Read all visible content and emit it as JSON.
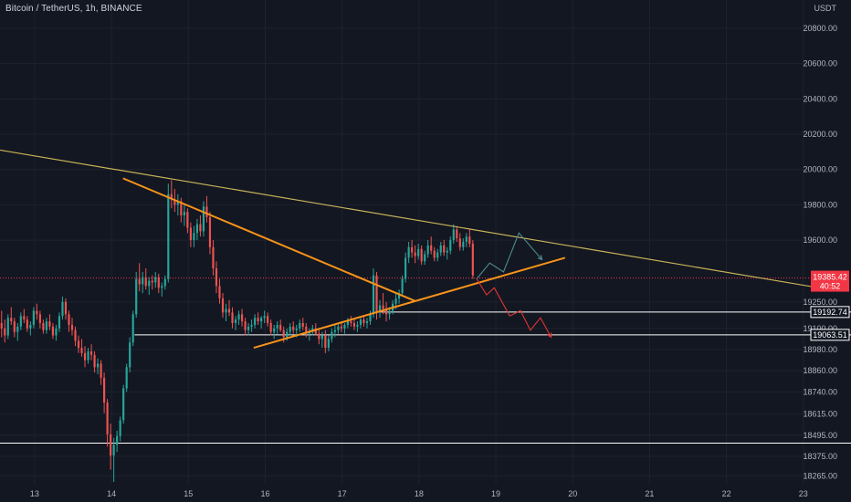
{
  "header": {
    "title": "Bitcoin / TetherUS, 1h, BINANCE",
    "currency": "USDT"
  },
  "colors": {
    "background": "#131722",
    "grid": "#1e222d",
    "axis_text": "#b2b5be",
    "up_candle": "#26a69a",
    "down_candle": "#ef5350",
    "trendline_orange": "#f7931a",
    "trendline_yellow": "#c9b458",
    "level_line": "#ffffff",
    "projection_up": "#4d8e8e",
    "projection_down": "#e0342f",
    "current_price_tag": "#f23645"
  },
  "chart_data": {
    "type": "candlestick",
    "x_ticks": [
      "13",
      "14",
      "15",
      "16",
      "17",
      "18",
      "19",
      "20",
      "21",
      "22",
      "23"
    ],
    "y_ticks": [
      "20800.00",
      "20600.00",
      "20400.00",
      "20200.00",
      "20000.00",
      "19800.00",
      "19600.00",
      "19250.00",
      "19100.00",
      "18980.00",
      "18860.00",
      "18740.00",
      "18615.00",
      "18495.00",
      "18375.00",
      "18265.00"
    ],
    "xlim": [
      12.55,
      23.05
    ],
    "ylim": [
      18220,
      20960
    ],
    "current_price": {
      "value": "19385.42",
      "countdown": "40:52"
    },
    "levels": [
      {
        "value": 19192.74,
        "label": "19192.74",
        "x_start": 17.45,
        "x_end": 23.2,
        "tagged": true
      },
      {
        "value": 19063.51,
        "label": "19063.51",
        "x_start": 14.3,
        "x_end": 23.2,
        "tagged": true
      },
      {
        "value": 18450,
        "label": "",
        "x_start": 12.55,
        "x_end": 23.2,
        "tagged": false
      }
    ],
    "trendlines": [
      {
        "name": "",
        "color": "yellow",
        "points": [
          [
            12.55,
            20110
          ],
          [
            23.2,
            19330
          ]
        ]
      },
      {
        "name": "",
        "color": "orange",
        "points": [
          [
            14.15,
            19950
          ],
          [
            17.95,
            19255
          ]
        ]
      },
      {
        "name": "",
        "color": "orange",
        "points": [
          [
            15.85,
            18990
          ],
          [
            19.9,
            19500
          ]
        ]
      }
    ],
    "projections": [
      {
        "name": "",
        "direction": "up",
        "points": [
          [
            18.75,
            19380
          ],
          [
            18.92,
            19470
          ],
          [
            19.1,
            19420
          ],
          [
            19.3,
            19640
          ],
          [
            19.6,
            19490
          ]
        ]
      },
      {
        "name": "",
        "direction": "down",
        "points": [
          [
            18.75,
            19380
          ],
          [
            18.88,
            19290
          ],
          [
            18.98,
            19330
          ],
          [
            19.18,
            19170
          ],
          [
            19.32,
            19200
          ],
          [
            19.45,
            19090
          ],
          [
            19.58,
            19160
          ],
          [
            19.72,
            19050
          ]
        ]
      }
    ],
    "candles": {
      "start_x": 12.55,
      "step": 0.0417,
      "ohlc": [
        [
          19130,
          19200,
          19050,
          19100
        ],
        [
          19100,
          19150,
          19020,
          19060
        ],
        [
          19060,
          19180,
          19040,
          19160
        ],
        [
          19160,
          19220,
          19120,
          19140
        ],
        [
          19140,
          19160,
          19050,
          19080
        ],
        [
          19080,
          19130,
          19030,
          19110
        ],
        [
          19110,
          19190,
          19090,
          19170
        ],
        [
          19170,
          19210,
          19130,
          19150
        ],
        [
          19150,
          19170,
          19080,
          19100
        ],
        [
          19100,
          19140,
          19060,
          19120
        ],
        [
          19120,
          19220,
          19100,
          19200
        ],
        [
          19200,
          19240,
          19150,
          19180
        ],
        [
          19180,
          19200,
          19100,
          19130
        ],
        [
          19130,
          19150,
          19070,
          19090
        ],
        [
          19090,
          19160,
          19070,
          19140
        ],
        [
          19140,
          19180,
          19090,
          19110
        ],
        [
          19110,
          19130,
          19040,
          19060
        ],
        [
          19060,
          19120,
          19030,
          19100
        ],
        [
          19100,
          19190,
          19080,
          19170
        ],
        [
          19170,
          19280,
          19150,
          19250
        ],
        [
          19250,
          19270,
          19150,
          19180
        ],
        [
          19180,
          19200,
          19080,
          19120
        ],
        [
          19120,
          19160,
          19060,
          19090
        ],
        [
          19090,
          19110,
          19000,
          19030
        ],
        [
          19030,
          19060,
          18960,
          18990
        ],
        [
          18990,
          19040,
          18940,
          18960
        ],
        [
          18960,
          19000,
          18880,
          18920
        ],
        [
          18920,
          18990,
          18900,
          18970
        ],
        [
          18970,
          19010,
          18920,
          18950
        ],
        [
          18950,
          18970,
          18850,
          18880
        ],
        [
          18880,
          18930,
          18840,
          18900
        ],
        [
          18900,
          18920,
          18780,
          18820
        ],
        [
          18820,
          18850,
          18620,
          18680
        ],
        [
          18680,
          18700,
          18430,
          18500
        ],
        [
          18500,
          18560,
          18300,
          18380
        ],
        [
          18380,
          18480,
          18230,
          18440
        ],
        [
          18440,
          18520,
          18400,
          18490
        ],
        [
          18490,
          18600,
          18460,
          18580
        ],
        [
          18580,
          18780,
          18560,
          18760
        ],
        [
          18760,
          18900,
          18740,
          18880
        ],
        [
          18880,
          19050,
          18850,
          19020
        ],
        [
          19020,
          19200,
          19000,
          19180
        ],
        [
          19180,
          19420,
          19160,
          19380
        ],
        [
          19380,
          19470,
          19310,
          19350
        ],
        [
          19350,
          19420,
          19300,
          19390
        ],
        [
          19390,
          19440,
          19320,
          19340
        ],
        [
          19340,
          19390,
          19290,
          19370
        ],
        [
          19370,
          19400,
          19320,
          19360
        ],
        [
          19360,
          19420,
          19330,
          19390
        ],
        [
          19390,
          19410,
          19300,
          19330
        ],
        [
          19330,
          19360,
          19280,
          19340
        ],
        [
          19340,
          19400,
          19320,
          19380
        ],
        [
          19380,
          19920,
          19360,
          19860
        ],
        [
          19860,
          19940,
          19780,
          19830
        ],
        [
          19830,
          19890,
          19760,
          19800
        ],
        [
          19800,
          19860,
          19740,
          19820
        ],
        [
          19820,
          19840,
          19700,
          19740
        ],
        [
          19740,
          19800,
          19680,
          19760
        ],
        [
          19760,
          19780,
          19640,
          19670
        ],
        [
          19670,
          19700,
          19560,
          19600
        ],
        [
          19600,
          19680,
          19560,
          19640
        ],
        [
          19640,
          19720,
          19600,
          19690
        ],
        [
          19690,
          19740,
          19620,
          19650
        ],
        [
          19650,
          19820,
          19620,
          19790
        ],
        [
          19790,
          19850,
          19700,
          19730
        ],
        [
          19730,
          19760,
          19520,
          19560
        ],
        [
          19560,
          19600,
          19400,
          19440
        ],
        [
          19440,
          19480,
          19300,
          19340
        ],
        [
          19340,
          19380,
          19240,
          19270
        ],
        [
          19270,
          19300,
          19160,
          19190
        ],
        [
          19190,
          19240,
          19140,
          19210
        ],
        [
          19210,
          19260,
          19170,
          19190
        ],
        [
          19190,
          19220,
          19100,
          19130
        ],
        [
          19130,
          19170,
          19090,
          19150
        ],
        [
          19150,
          19200,
          19120,
          19180
        ],
        [
          19180,
          19210,
          19110,
          19140
        ],
        [
          19140,
          19160,
          19060,
          19090
        ],
        [
          19090,
          19130,
          19060,
          19110
        ],
        [
          19110,
          19150,
          19080,
          19120
        ],
        [
          19120,
          19180,
          19100,
          19160
        ],
        [
          19160,
          19190,
          19120,
          19140
        ],
        [
          19140,
          19170,
          19100,
          19160
        ],
        [
          19160,
          19200,
          19130,
          19170
        ],
        [
          19170,
          19190,
          19110,
          19130
        ],
        [
          19130,
          19150,
          19060,
          19080
        ],
        [
          19080,
          19120,
          19040,
          19100
        ],
        [
          19100,
          19140,
          19070,
          19120
        ],
        [
          19120,
          19150,
          19080,
          19090
        ],
        [
          19090,
          19110,
          19020,
          19050
        ],
        [
          19050,
          19100,
          19030,
          19080
        ],
        [
          19080,
          19130,
          19060,
          19110
        ],
        [
          19110,
          19140,
          19070,
          19090
        ],
        [
          19090,
          19120,
          19050,
          19100
        ],
        [
          19100,
          19150,
          19080,
          19130
        ],
        [
          19130,
          19160,
          19090,
          19110
        ],
        [
          19110,
          19130,
          19050,
          19070
        ],
        [
          19070,
          19100,
          19030,
          19080
        ],
        [
          19080,
          19120,
          19060,
          19100
        ],
        [
          19100,
          19130,
          19060,
          19070
        ],
        [
          19070,
          19090,
          19010,
          19040
        ],
        [
          19040,
          19080,
          18990,
          19060
        ],
        [
          19060,
          19090,
          18960,
          18990
        ],
        [
          18990,
          19060,
          18970,
          19040
        ],
        [
          19040,
          19100,
          19020,
          19080
        ],
        [
          19080,
          19120,
          19050,
          19090
        ],
        [
          19090,
          19130,
          19070,
          19110
        ],
        [
          19110,
          19140,
          19080,
          19100
        ],
        [
          19100,
          19130,
          19070,
          19120
        ],
        [
          19120,
          19160,
          19100,
          19140
        ],
        [
          19140,
          19170,
          19110,
          19130
        ],
        [
          19130,
          19150,
          19090,
          19110
        ],
        [
          19110,
          19140,
          19080,
          19120
        ],
        [
          19120,
          19160,
          19100,
          19150
        ],
        [
          19150,
          19170,
          19110,
          19130
        ],
        [
          19130,
          19160,
          19100,
          19140
        ],
        [
          19140,
          19200,
          19120,
          19180
        ],
        [
          19180,
          19440,
          19160,
          19400
        ],
        [
          19400,
          19420,
          19150,
          19190
        ],
        [
          19190,
          19260,
          19160,
          19230
        ],
        [
          19230,
          19300,
          19180,
          19210
        ],
        [
          19210,
          19250,
          19140,
          19180
        ],
        [
          19180,
          19220,
          19150,
          19200
        ],
        [
          19200,
          19260,
          19180,
          19240
        ],
        [
          19240,
          19300,
          19210,
          19270
        ],
        [
          19270,
          19320,
          19240,
          19300
        ],
        [
          19300,
          19400,
          19280,
          19380
        ],
        [
          19380,
          19530,
          19360,
          19500
        ],
        [
          19500,
          19590,
          19470,
          19560
        ],
        [
          19560,
          19600,
          19500,
          19530
        ],
        [
          19530,
          19570,
          19470,
          19510
        ],
        [
          19510,
          19580,
          19490,
          19550
        ],
        [
          19550,
          19570,
          19460,
          19480
        ],
        [
          19480,
          19540,
          19460,
          19520
        ],
        [
          19520,
          19600,
          19500,
          19570
        ],
        [
          19570,
          19620,
          19520,
          19540
        ],
        [
          19540,
          19560,
          19480,
          19500
        ],
        [
          19500,
          19550,
          19480,
          19530
        ],
        [
          19530,
          19590,
          19510,
          19570
        ],
        [
          19570,
          19600,
          19510,
          19530
        ],
        [
          19530,
          19560,
          19490,
          19540
        ],
        [
          19540,
          19620,
          19520,
          19600
        ],
        [
          19600,
          19690,
          19580,
          19660
        ],
        [
          19660,
          19680,
          19590,
          19610
        ],
        [
          19610,
          19640,
          19540,
          19560
        ],
        [
          19560,
          19610,
          19540,
          19590
        ],
        [
          19590,
          19640,
          19560,
          19620
        ],
        [
          19620,
          19660,
          19560,
          19580
        ],
        [
          19580,
          19600,
          19380,
          19400
        ]
      ]
    }
  }
}
